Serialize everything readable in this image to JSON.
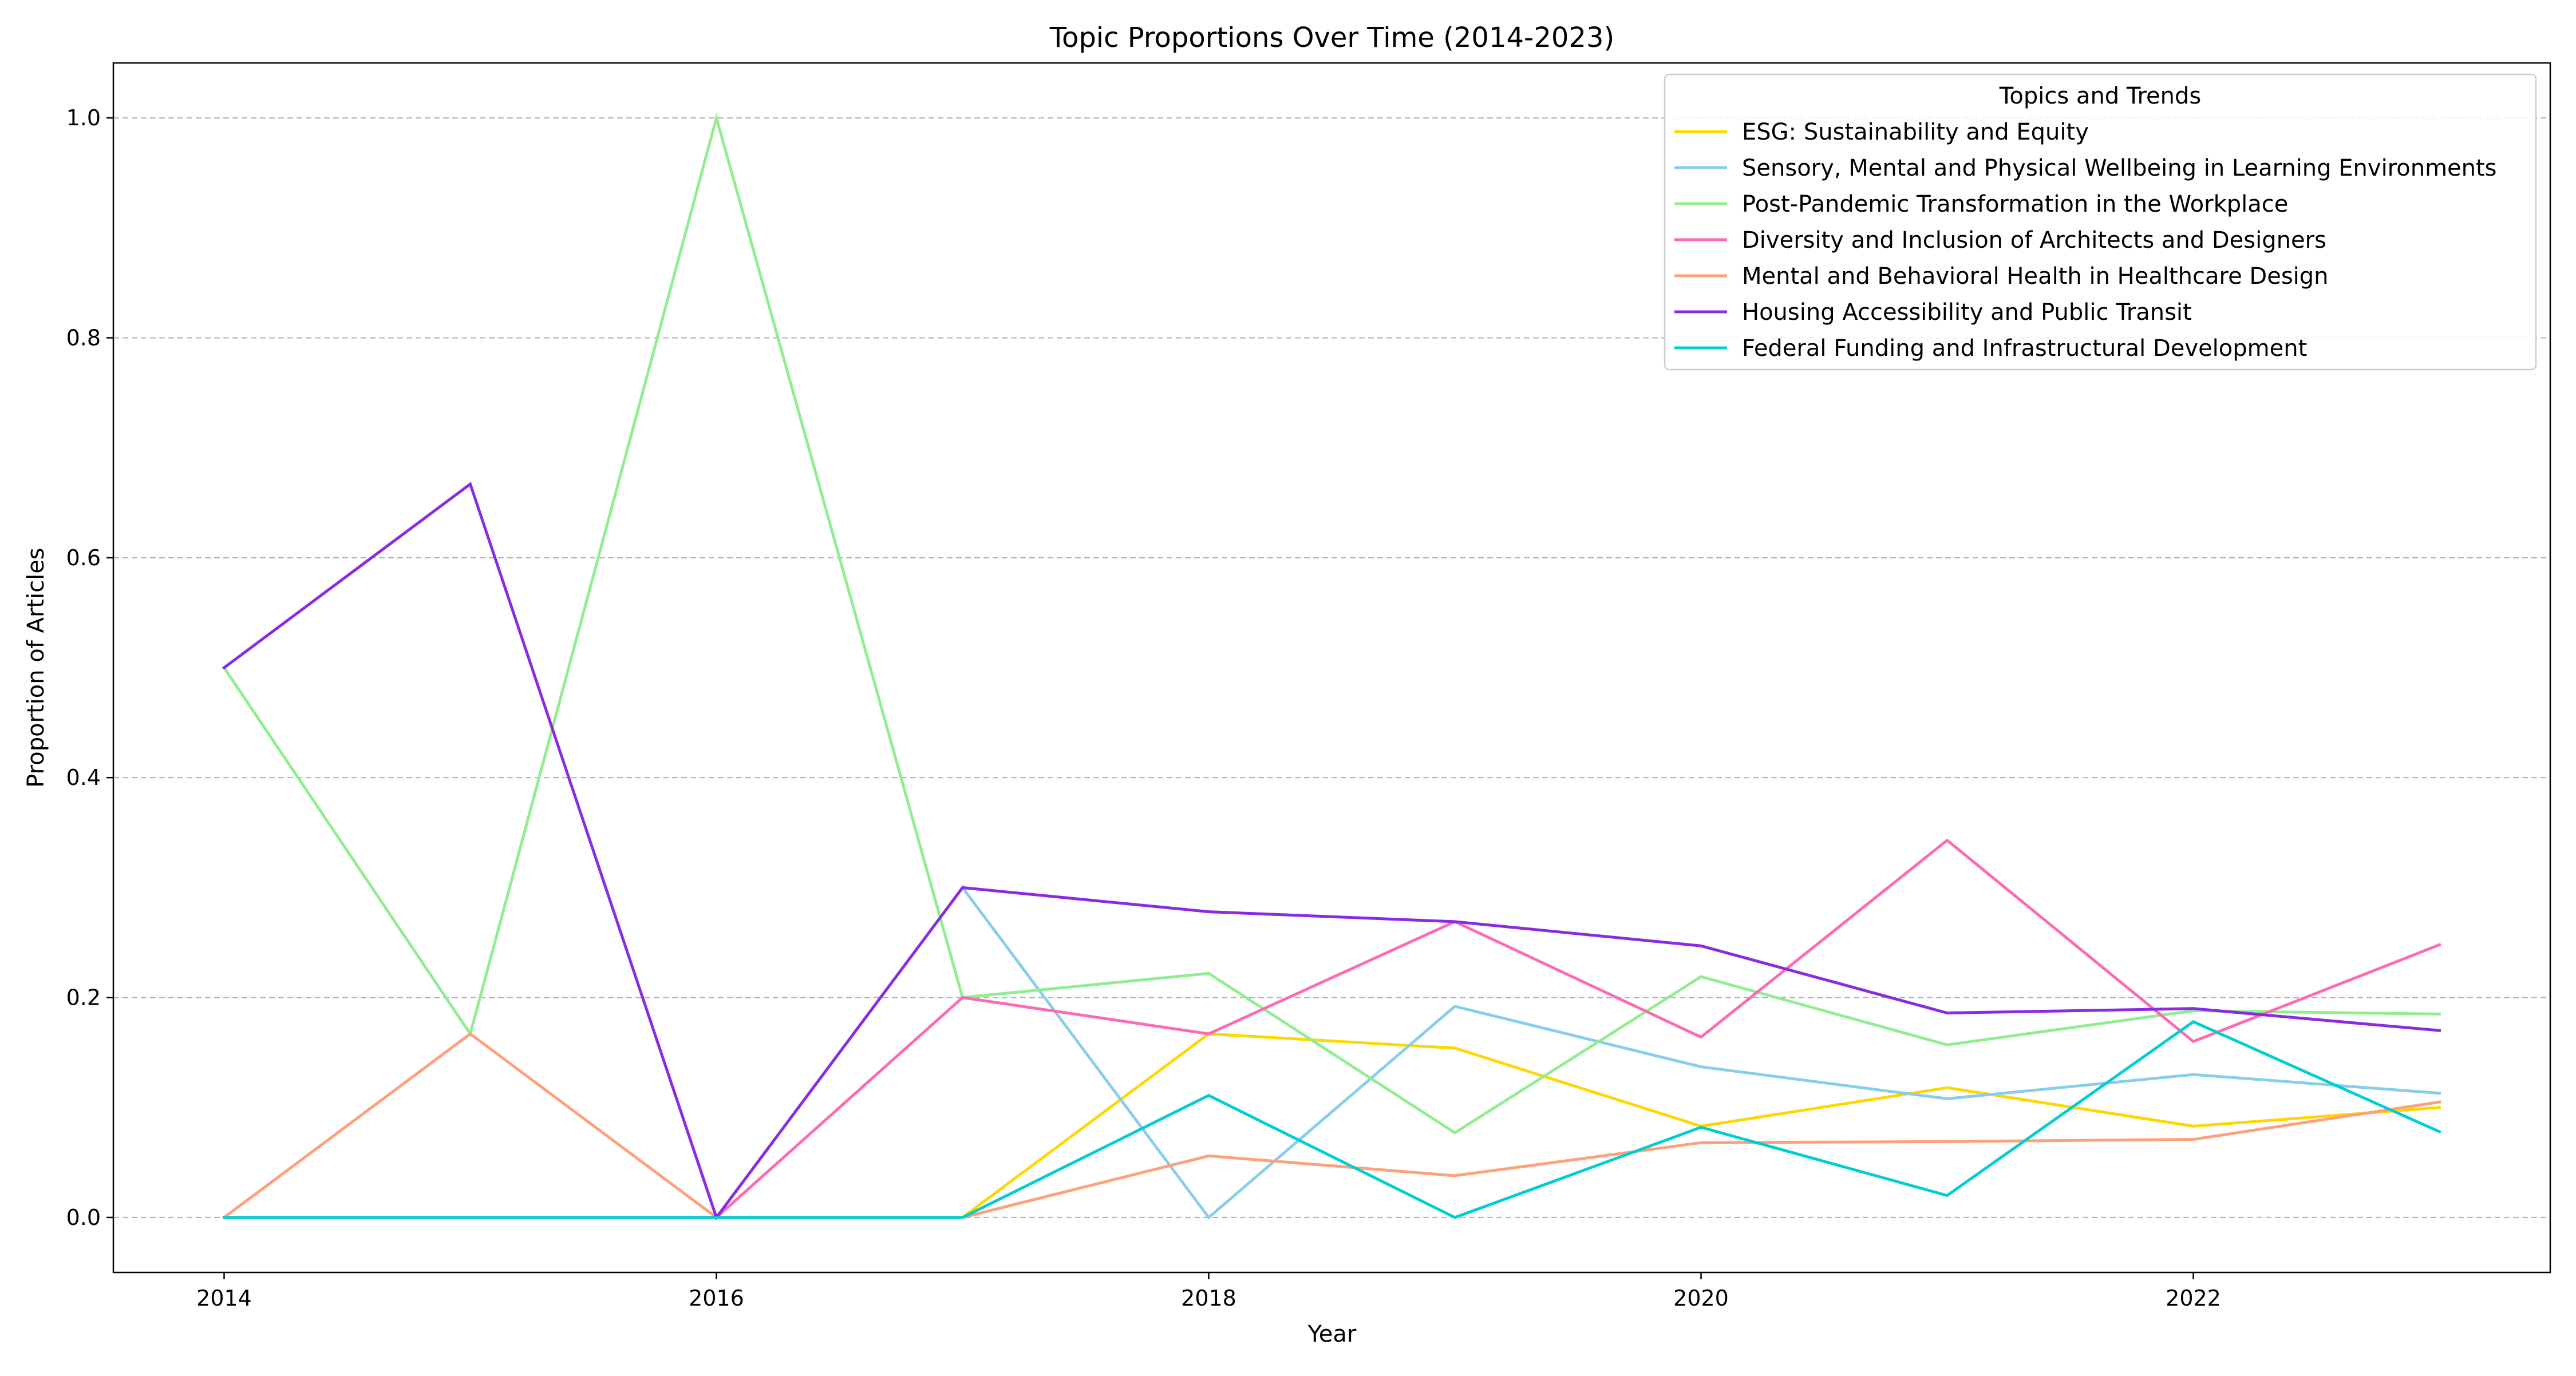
{
  "chart_data": {
    "type": "line",
    "title": "Topic Proportions Over Time (2014-2023)",
    "xlabel": "Year",
    "ylabel": "Proportion of Articles",
    "x": [
      2014,
      2015,
      2016,
      2017,
      2018,
      2019,
      2020,
      2021,
      2022,
      2023
    ],
    "xlim": [
      2013.55,
      2023.45
    ],
    "ylim": [
      -0.05,
      1.05
    ],
    "xticks": [
      2014,
      2016,
      2018,
      2020,
      2022
    ],
    "yticks": [
      0.0,
      0.2,
      0.4,
      0.6,
      0.8,
      1.0
    ],
    "xtick_labels": [
      "2014",
      "2016",
      "2018",
      "2020",
      "2022"
    ],
    "ytick_labels": [
      "0.0",
      "0.2",
      "0.4",
      "0.6",
      "0.8",
      "1.0"
    ],
    "grid": "horizontal dashed",
    "legend": {
      "title": "Topics and Trends",
      "placement": "top-right"
    },
    "series": [
      {
        "name": "ESG: Sustainability and Equity",
        "color": "#FFD700",
        "values": [
          0,
          0,
          0,
          0,
          0.167,
          0.154,
          0.083,
          0.118,
          0.083,
          0.1
        ]
      },
      {
        "name": "Sensory, Mental and Physical Wellbeing in Learning Environments",
        "color": "#87CEEB",
        "values": [
          0,
          0,
          0,
          0.3,
          0,
          0.192,
          0.137,
          0.108,
          0.13,
          0.113
        ]
      },
      {
        "name": "Post-Pandemic Transformation in the Workplace",
        "color": "#90EE90",
        "values": [
          0.5,
          0.167,
          1.0,
          0.2,
          0.222,
          0.077,
          0.219,
          0.157,
          0.188,
          0.185
        ]
      },
      {
        "name": "Diversity and Inclusion of Architects and Designers",
        "color": "#FF69B4",
        "values": [
          0,
          0,
          0,
          0.2,
          0.167,
          0.269,
          0.164,
          0.343,
          0.16,
          0.248
        ]
      },
      {
        "name": "Mental and Behavioral Health in Healthcare Design",
        "color": "#FFA07A",
        "values": [
          0,
          0.167,
          0,
          0,
          0.056,
          0.038,
          0.068,
          0.069,
          0.071,
          0.105
        ]
      },
      {
        "name": "Housing Accessibility and Public Transit",
        "color": "#8A2BE2",
        "values": [
          0.5,
          0.667,
          0,
          0.3,
          0.278,
          0.269,
          0.247,
          0.186,
          0.19,
          0.17
        ]
      },
      {
        "name": "Federal Funding and Infrastructural Development",
        "color": "#00CED1",
        "values": [
          0,
          0,
          0,
          0,
          0.111,
          0,
          0.082,
          0.02,
          0.178,
          0.078
        ]
      }
    ]
  }
}
